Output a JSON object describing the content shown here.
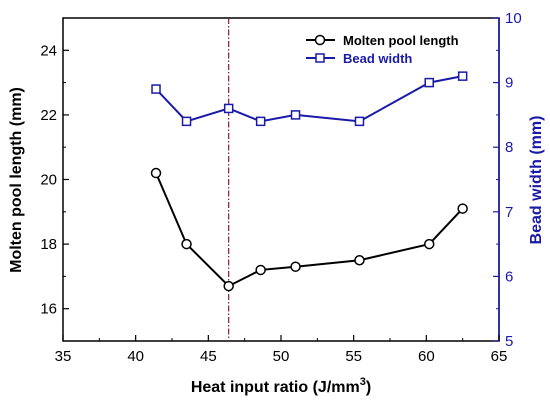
{
  "chart_data": {
    "type": "line",
    "title": "",
    "xlabel": "Heat input ratio (J/mm",
    "xlabel_sup": "3",
    "xlabel_end": ")",
    "ylabel_left": "Molten pool length (mm)",
    "ylabel_right": "Bead width (mm)",
    "xlim": [
      35,
      65
    ],
    "ylim_left": [
      15,
      25
    ],
    "ylim_right": [
      5,
      10
    ],
    "x_ticks": [
      "35",
      "40",
      "45",
      "50",
      "55",
      "60",
      "65"
    ],
    "y_left_ticks": [
      "16",
      "18",
      "20",
      "22",
      "24"
    ],
    "y_right_ticks": [
      "5",
      "6",
      "7",
      "8",
      "9",
      "10"
    ],
    "reference_line_x": 46.4,
    "legend_position": "top-right",
    "grid": false,
    "colors": {
      "left_axis": "#000000",
      "right_axis": "#1a1aa8",
      "reference_line": "#8b1a4a"
    },
    "series": [
      {
        "name": "Molten pool length",
        "axis": "left",
        "marker": "circle",
        "color": "#000000",
        "x": [
          41.4,
          43.5,
          46.4,
          48.6,
          51.0,
          55.4,
          60.2,
          62.5
        ],
        "y": [
          20.2,
          18.0,
          16.7,
          17.2,
          17.3,
          17.5,
          18.0,
          19.1
        ]
      },
      {
        "name": "Bead width",
        "axis": "right",
        "marker": "square",
        "color": "#1a1aa8",
        "x": [
          41.4,
          43.5,
          46.4,
          48.6,
          51.0,
          55.4,
          60.2,
          62.5
        ],
        "y": [
          8.9,
          8.4,
          8.6,
          8.4,
          8.5,
          8.4,
          9.0,
          9.1
        ]
      }
    ]
  }
}
